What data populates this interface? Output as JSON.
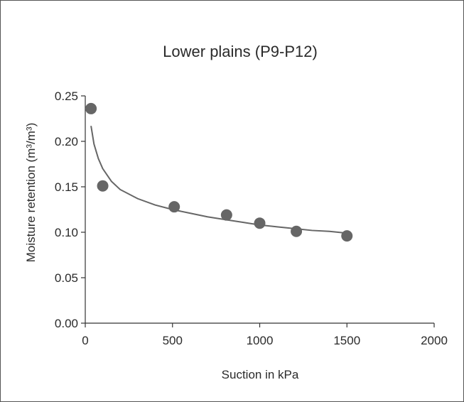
{
  "chart_data": {
    "type": "scatter",
    "title": "Lower plains (P9-P12)",
    "xlabel": "Suction in kPa",
    "ylabel": "Moisture retention (m³/m³)",
    "xlim": [
      0,
      2000
    ],
    "ylim": [
      0,
      0.25
    ],
    "x_ticks": [
      0,
      500,
      1000,
      1500,
      2000
    ],
    "x_tick_labels": [
      "0",
      "500",
      "1000",
      "1500",
      "2000"
    ],
    "y_ticks": [
      0,
      0.05,
      0.1,
      0.15,
      0.2,
      0.25
    ],
    "y_tick_labels": [
      "0.00",
      "0.05",
      "0.10",
      "0.15",
      "0.20",
      "0.25"
    ],
    "grid": false,
    "series": [
      {
        "type": "scatter",
        "x": [
          33,
          100,
          510,
          810,
          1000,
          1210,
          1500
        ],
        "y": [
          0.236,
          0.151,
          0.128,
          0.119,
          0.11,
          0.101,
          0.096
        ]
      },
      {
        "type": "line",
        "x": [
          33,
          50,
          75,
          100,
          150,
          200,
          300,
          400,
          500,
          600,
          700,
          800,
          900,
          1000,
          1100,
          1200,
          1300,
          1400,
          1500
        ],
        "y": [
          0.217,
          0.197,
          0.181,
          0.17,
          0.156,
          0.147,
          0.137,
          0.13,
          0.125,
          0.121,
          0.117,
          0.114,
          0.111,
          0.108,
          0.106,
          0.104,
          0.102,
          0.101,
          0.099
        ]
      }
    ],
    "colors": {
      "points": "#666666",
      "curve": "#666666",
      "axis": "#333333",
      "text": "#2a2a2a"
    }
  }
}
